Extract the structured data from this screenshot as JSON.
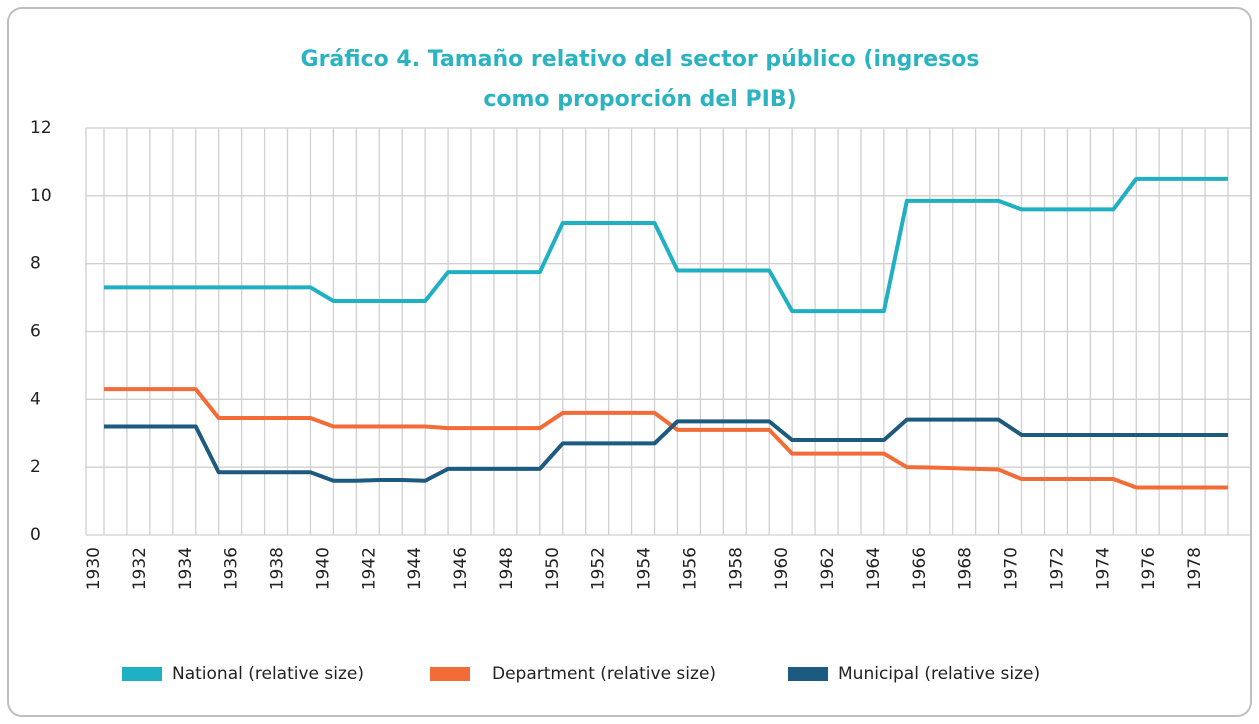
{
  "chart_data": {
    "type": "line",
    "title": [
      "Gráfico 4. Tamaño relativo del sector público (ingresos",
      "como proporción del PIB)"
    ],
    "categories": [
      "1930",
      null,
      "1932",
      null,
      "1934",
      null,
      "1936",
      null,
      "1938",
      null,
      "1940",
      null,
      "1942",
      null,
      "1944",
      null,
      "1946",
      null,
      "1948",
      null,
      "1950",
      null,
      "1952",
      null,
      "1954",
      null,
      "1956",
      null,
      "1958",
      null,
      "1960",
      null,
      "1962",
      null,
      "1964",
      null,
      "1966",
      null,
      "1968",
      null,
      "1970",
      null,
      "1972",
      null,
      "1974",
      null,
      "1976",
      null,
      "1978",
      null
    ],
    "series": [
      {
        "name": "National (relative size)",
        "color": "#20b0c3",
        "values": [
          7.3,
          7.3,
          7.3,
          7.3,
          7.3,
          7.3,
          7.3,
          7.3,
          7.3,
          7.3,
          6.9,
          6.9,
          6.9,
          6.9,
          6.9,
          7.75,
          7.75,
          7.75,
          7.75,
          7.75,
          9.2,
          9.2,
          9.2,
          9.2,
          9.2,
          7.8,
          7.8,
          7.8,
          7.8,
          7.8,
          6.6,
          6.6,
          6.6,
          6.6,
          6.6,
          9.85,
          9.85,
          9.85,
          9.85,
          9.85,
          9.6,
          9.6,
          9.6,
          9.6,
          9.6,
          10.5,
          10.5,
          10.5,
          10.5,
          10.5
        ]
      },
      {
        "name": "Department (relative size)",
        "color": "#f36b36",
        "values": [
          4.3,
          4.3,
          4.3,
          4.3,
          4.3,
          3.45,
          3.45,
          3.45,
          3.45,
          3.45,
          3.2,
          3.2,
          3.2,
          3.2,
          3.2,
          3.15,
          3.15,
          3.15,
          3.15,
          3.15,
          3.6,
          3.6,
          3.6,
          3.6,
          3.6,
          3.1,
          3.1,
          3.1,
          3.1,
          3.1,
          2.4,
          2.4,
          2.4,
          2.4,
          2.4,
          2.0,
          1.99,
          1.97,
          1.95,
          1.93,
          1.65,
          1.65,
          1.65,
          1.65,
          1.65,
          1.4,
          1.4,
          1.4,
          1.4,
          1.4
        ]
      },
      {
        "name": "Municipal (relative size)",
        "color": "#1d5a7f",
        "values": [
          3.2,
          3.2,
          3.2,
          3.2,
          3.2,
          1.85,
          1.85,
          1.85,
          1.85,
          1.85,
          1.6,
          1.6,
          1.62,
          1.62,
          1.6,
          1.95,
          1.95,
          1.95,
          1.95,
          1.95,
          2.7,
          2.7,
          2.7,
          2.7,
          2.7,
          3.35,
          3.35,
          3.35,
          3.35,
          3.35,
          2.8,
          2.8,
          2.8,
          2.8,
          2.8,
          3.4,
          3.4,
          3.4,
          3.4,
          3.4,
          2.95,
          2.95,
          2.95,
          2.95,
          2.95,
          2.95,
          2.95,
          2.95,
          2.95,
          2.95
        ]
      }
    ],
    "ylim": [
      0,
      12
    ],
    "yticks": [
      0,
      2,
      4,
      6,
      8,
      10,
      12
    ],
    "grid": true,
    "legend": "bottom"
  }
}
